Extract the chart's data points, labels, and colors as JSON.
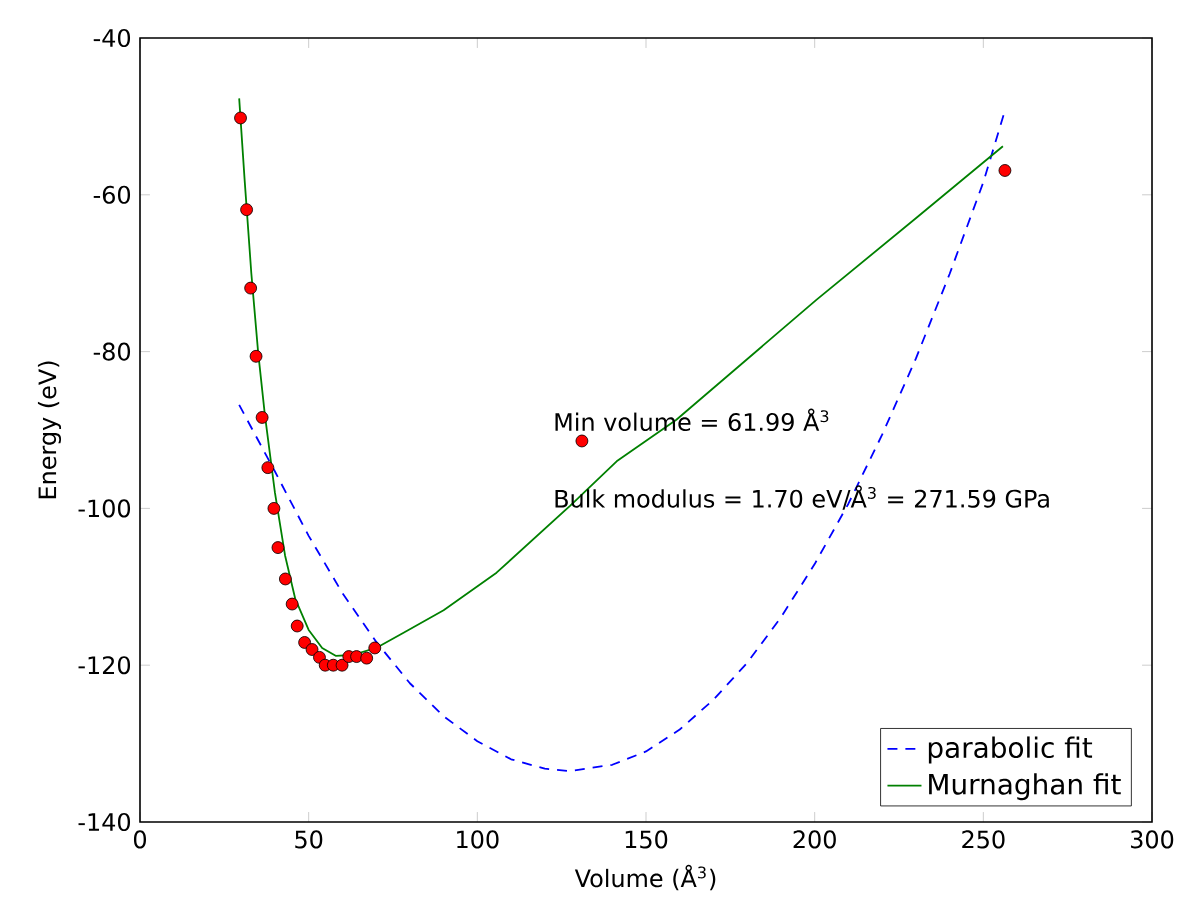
{
  "chart_data": {
    "type": "line",
    "xlabel": "Volume (Å$^{3}$)",
    "ylabel": "Energy (eV)",
    "xlim": [
      0,
      300
    ],
    "ylim": [
      -140,
      -40
    ],
    "xticks": [
      0,
      50,
      100,
      150,
      200,
      250,
      300
    ],
    "yticks": [
      -140,
      -120,
      -100,
      -80,
      -60,
      -40
    ],
    "grid": false,
    "legend": "bottom right",
    "annotations": [
      "Min volume = 61.99 Å$^{3}$",
      "Bulk modulus = 1.70 eV/Å$^{3}$  = 271.59 GPa"
    ],
    "series": [
      {
        "type": "scatter",
        "color": "#ff0000",
        "marker": "circle",
        "x": [
          29.8,
          31.6,
          32.8,
          34.4,
          36.2,
          37.9,
          39.7,
          40.9,
          43.1,
          45.1,
          46.6,
          48.8,
          51.0,
          53.2,
          54.9,
          57.3,
          59.9,
          61.9,
          64.2,
          67.2,
          69.6,
          131.0,
          256.4
        ],
        "values": [
          -50.2,
          -61.9,
          -71.9,
          -80.6,
          -88.4,
          -94.8,
          -100.0,
          -105.0,
          -109.0,
          -112.2,
          -115.0,
          -117.1,
          -118.0,
          -119.0,
          -120.0,
          -120.0,
          -120.0,
          -118.9,
          -118.9,
          -119.1,
          -117.8,
          -91.4,
          -56.9
        ]
      },
      {
        "name": "parabolic fit",
        "color": "#0000ff",
        "line_style": "dashed",
        "marker": "none",
        "x": [
          29.4,
          40,
          50,
          60,
          70,
          80,
          90,
          100,
          110,
          120,
          127.4,
          140,
          150,
          160,
          170,
          180,
          190,
          200,
          210,
          220,
          230,
          240,
          250,
          256.3
        ],
        "values": [
          -86.8,
          -95.3,
          -103.5,
          -110.8,
          -117.0,
          -122.3,
          -126.5,
          -129.7,
          -132.0,
          -133.2,
          -133.5,
          -132.7,
          -131.0,
          -128.2,
          -124.4,
          -119.7,
          -113.9,
          -107.1,
          -99.4,
          -90.6,
          -80.9,
          -70.1,
          -58.4,
          -49.4
        ]
      },
      {
        "name": "Murnaghan fit",
        "color": "#008000",
        "line_style": "solid",
        "marker": "none",
        "x": [
          29.4,
          31,
          33,
          35,
          37,
          40,
          43,
          46,
          50,
          54,
          58,
          63,
          70,
          78,
          90,
          105.7,
          127.4,
          141.3,
          159,
          200.5,
          230,
          255.8
        ],
        "values": [
          -47.7,
          -58,
          -70,
          -80,
          -88,
          -98,
          -106,
          -111.5,
          -115.5,
          -117.8,
          -118.8,
          -118.7,
          -117.8,
          -115.9,
          -113,
          -108.2,
          -99.7,
          -94.0,
          -88.7,
          -73.4,
          -63,
          -53.8
        ]
      }
    ]
  }
}
